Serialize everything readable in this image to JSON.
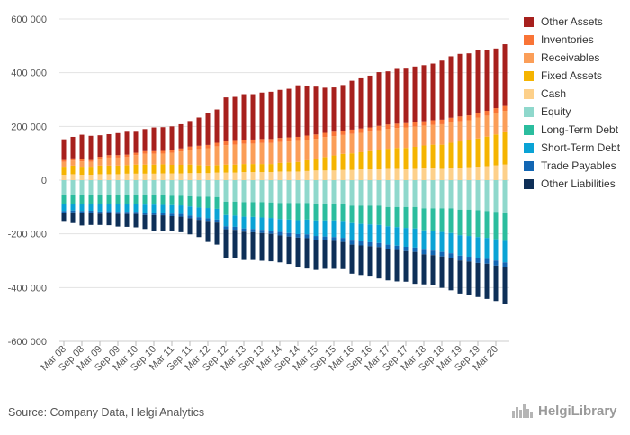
{
  "chart_data": {
    "type": "bar",
    "stacked": true,
    "ylim": [
      -600000,
      600000
    ],
    "yticks": [
      600000,
      400000,
      200000,
      0,
      -200000,
      -400000,
      -600000
    ],
    "ytick_labels": [
      "600 000",
      "400 000",
      "200 000",
      "0",
      "-200 000",
      "-400 000",
      "-600 000"
    ],
    "grid": "horizontal",
    "legend_position": "right",
    "quarters": [
      "Mar 08",
      "Jun 08",
      "Sep 08",
      "Dec 08",
      "Mar 09",
      "Jun 09",
      "Sep 09",
      "Dec 09",
      "Mar 10",
      "Jun 10",
      "Sep 10",
      "Dec 10",
      "Mar 11",
      "Jun 11",
      "Sep 11",
      "Dec 11",
      "Mar 12",
      "Jun 12",
      "Sep 12",
      "Dec 12",
      "Mar 13",
      "Jun 13",
      "Sep 13",
      "Dec 13",
      "Mar 14",
      "Jun 14",
      "Sep 14",
      "Dec 14",
      "Mar 15",
      "Jun 15",
      "Sep 15",
      "Dec 15",
      "Mar 16",
      "Jun 16",
      "Sep 16",
      "Dec 16",
      "Mar 17",
      "Jun 17",
      "Sep 17",
      "Dec 17",
      "Mar 18",
      "Jun 18",
      "Sep 18",
      "Dec 18",
      "Mar 19",
      "Jun 19",
      "Sep 19",
      "Dec 19",
      "Mar 20",
      "Jun 20"
    ],
    "tick_labels": [
      "Mar 08",
      "Sep 08",
      "Mar 09",
      "Sep 09",
      "Mar 10",
      "Sep 10",
      "Mar 11",
      "Sep 11",
      "Mar 12",
      "Sep 12",
      "Mar 13",
      "Sep 13",
      "Mar 14",
      "Sep 14",
      "Mar 15",
      "Sep 15",
      "Mar 16",
      "Sep 16",
      "Mar 17",
      "Sep 17",
      "Mar 18",
      "Sep 18",
      "Mar 19",
      "Sep 19",
      "Mar 20"
    ],
    "assets": [
      {
        "name": "Cash",
        "color": "#fdd08a",
        "values": [
          20000,
          22000,
          20000,
          20000,
          22000,
          22000,
          22000,
          24000,
          24000,
          24000,
          24000,
          25000,
          25000,
          25000,
          26000,
          26000,
          26000,
          28000,
          28000,
          28000,
          30000,
          30000,
          30000,
          30000,
          32000,
          32000,
          32000,
          34000,
          36000,
          36000,
          36000,
          38000,
          38000,
          40000,
          40000,
          40000,
          42000,
          42000,
          40000,
          42000,
          44000,
          44000,
          42000,
          44000,
          46000,
          48000,
          50000,
          52000,
          55000,
          58000
        ]
      },
      {
        "name": "Fixed Assets",
        "color": "#f5b400",
        "values": [
          30000,
          32000,
          30000,
          30000,
          32000,
          32000,
          32000,
          32000,
          34000,
          34000,
          34000,
          34000,
          32000,
          32000,
          32000,
          30000,
          28000,
          28000,
          30000,
          30000,
          30000,
          30000,
          30000,
          30000,
          32000,
          34000,
          36000,
          40000,
          44000,
          50000,
          56000,
          60000,
          62000,
          64000,
          68000,
          72000,
          75000,
          78000,
          80000,
          82000,
          85000,
          88000,
          90000,
          95000,
          98000,
          100000,
          105000,
          110000,
          115000,
          120000
        ]
      },
      {
        "name": "Receivables",
        "color": "#fb9e58",
        "values": [
          18000,
          19000,
          20000,
          18000,
          25000,
          30000,
          30000,
          30000,
          35000,
          40000,
          40000,
          40000,
          45000,
          50000,
          55000,
          60000,
          65000,
          70000,
          72000,
          74000,
          75000,
          76000,
          78000,
          78000,
          78000,
          78000,
          78000,
          76000,
          74000,
          74000,
          72000,
          70000,
          72000,
          72000,
          72000,
          74000,
          74000,
          74000,
          76000,
          75000,
          74000,
          74000,
          76000,
          76000,
          75000,
          75000,
          78000,
          78000,
          80000,
          80000
        ]
      },
      {
        "name": "Inventories",
        "color": "#f97436",
        "values": [
          7000,
          8000,
          8000,
          7000,
          8000,
          9000,
          9000,
          9000,
          9000,
          10000,
          10000,
          10000,
          10000,
          11000,
          12000,
          12000,
          12000,
          13000,
          14000,
          14000,
          14000,
          15000,
          15000,
          15000,
          15000,
          15000,
          15000,
          16000,
          16000,
          16000,
          16000,
          16000,
          16000,
          16000,
          16000,
          16000,
          16000,
          16000,
          16000,
          16000,
          16000,
          17000,
          17000,
          17000,
          18000,
          18000,
          18000,
          18000,
          18000,
          18000
        ]
      },
      {
        "name": "Other Assets",
        "color": "#a7201d",
        "values": [
          77000,
          80000,
          91000,
          90000,
          80000,
          78000,
          82000,
          85000,
          78000,
          82000,
          88000,
          88000,
          88000,
          90000,
          95000,
          105000,
          118000,
          124000,
          164000,
          164000,
          171000,
          169000,
          173000,
          176000,
          179000,
          181000,
          192000,
          186000,
          178000,
          168000,
          165000,
          170000,
          182000,
          187000,
          193000,
          200000,
          198000,
          204000,
          203000,
          208000,
          209000,
          211000,
          220000,
          229000,
          233000,
          231000,
          232000,
          228000,
          222000,
          230000
        ]
      }
    ],
    "liabilities": [
      {
        "name": "Equity",
        "color": "#8fd8cc",
        "values": [
          -55000,
          -55000,
          -55000,
          -55000,
          -56000,
          -56000,
          -56000,
          -56000,
          -57000,
          -57000,
          -57000,
          -57000,
          -58000,
          -58000,
          -60000,
          -62000,
          -62000,
          -63000,
          -80000,
          -80000,
          -82000,
          -82000,
          -82000,
          -83000,
          -85000,
          -85000,
          -85000,
          -85000,
          -90000,
          -90000,
          -90000,
          -90000,
          -95000,
          -95000,
          -95000,
          -95000,
          -100000,
          -100000,
          -100000,
          -100000,
          -105000,
          -105000,
          -105000,
          -105000,
          -110000,
          -110000,
          -112000,
          -115000,
          -118000,
          -122000
        ]
      },
      {
        "name": "Long-Term Debt",
        "color": "#2bbd9e",
        "values": [
          -35000,
          -33000,
          -34000,
          -33000,
          -34000,
          -33000,
          -34000,
          -34000,
          -33000,
          -34000,
          -34000,
          -35000,
          -35000,
          -36000,
          -38000,
          -40000,
          -42000,
          -44000,
          -50000,
          -52000,
          -54000,
          -55000,
          -57000,
          -58000,
          -60000,
          -62000,
          -64000,
          -62000,
          -60000,
          -60000,
          -60000,
          -62000,
          -65000,
          -68000,
          -70000,
          -72000,
          -72000,
          -75000,
          -78000,
          -80000,
          -82000,
          -84000,
          -88000,
          -92000,
          -95000,
          -98000,
          -100000,
          -100000,
          -102000,
          -104000
        ]
      },
      {
        "name": "Short-Term Debt",
        "color": "#0aa3d5",
        "values": [
          -25000,
          -25000,
          -26000,
          -26000,
          -27000,
          -27000,
          -28000,
          -28000,
          -28000,
          -30000,
          -30000,
          -30000,
          -32000,
          -32000,
          -34000,
          -36000,
          -38000,
          -40000,
          -42000,
          -42000,
          -44000,
          -45000,
          -46000,
          -47000,
          -48000,
          -50000,
          -52000,
          -55000,
          -58000,
          -60000,
          -62000,
          -63000,
          -65000,
          -65000,
          -66000,
          -67000,
          -68000,
          -69000,
          -70000,
          -71000,
          -72000,
          -73000,
          -74000,
          -75000,
          -76000,
          -77000,
          -78000,
          -78000,
          -79000,
          -80000
        ]
      },
      {
        "name": "Trade Payables",
        "color": "#1266b3",
        "values": [
          -7000,
          -7000,
          -7000,
          -7000,
          -8000,
          -8000,
          -8000,
          -8000,
          -8000,
          -9000,
          -9000,
          -9000,
          -9000,
          -10000,
          -10000,
          -10000,
          -10000,
          -11000,
          -11000,
          -11000,
          -12000,
          -12000,
          -12000,
          -12000,
          -13000,
          -13000,
          -13000,
          -14000,
          -14000,
          -14000,
          -14000,
          -15000,
          -15000,
          -15000,
          -15000,
          -15000,
          -16000,
          -16000,
          -16000,
          -16000,
          -17000,
          -17000,
          -17000,
          -17000,
          -18000,
          -18000,
          -18000,
          -18000,
          -19000,
          -19000
        ]
      },
      {
        "name": "Other Liabilities",
        "color": "#0e2f57",
        "values": [
          -30000,
          -40000,
          -47000,
          -46000,
          -42000,
          -44000,
          -47000,
          -48000,
          -50000,
          -52000,
          -58000,
          -58000,
          -56000,
          -58000,
          -60000,
          -64000,
          -78000,
          -82000,
          -106000,
          -105000,
          -105000,
          -103000,
          -103000,
          -102000,
          -100000,
          -102000,
          -108000,
          -113000,
          -112000,
          -106000,
          -104000,
          -101000,
          -108000,
          -110000,
          -113000,
          -117000,
          -117000,
          -117000,
          -114000,
          -119000,
          -112000,
          -110000,
          -117000,
          -121000,
          -123000,
          -125000,
          -127000,
          -131000,
          -132000,
          -136000
        ]
      }
    ]
  },
  "legend": {
    "items": [
      {
        "name": "Other Assets",
        "color": "#a7201d"
      },
      {
        "name": "Inventories",
        "color": "#f97436"
      },
      {
        "name": "Receivables",
        "color": "#fb9e58"
      },
      {
        "name": "Fixed Assets",
        "color": "#f5b400"
      },
      {
        "name": "Cash",
        "color": "#fdd08a"
      },
      {
        "name": "Equity",
        "color": "#8fd8cc"
      },
      {
        "name": "Long-Term Debt",
        "color": "#2bbd9e"
      },
      {
        "name": "Short-Term Debt",
        "color": "#0aa3d5"
      },
      {
        "name": "Trade Payables",
        "color": "#1266b3"
      },
      {
        "name": "Other Liabilities",
        "color": "#0e2f57"
      }
    ]
  },
  "footer": {
    "source": "Source: Company Data, Helgi Analytics",
    "logo_text": "HelgiLibrary",
    "logo_icon": "city-skyline-icon"
  }
}
